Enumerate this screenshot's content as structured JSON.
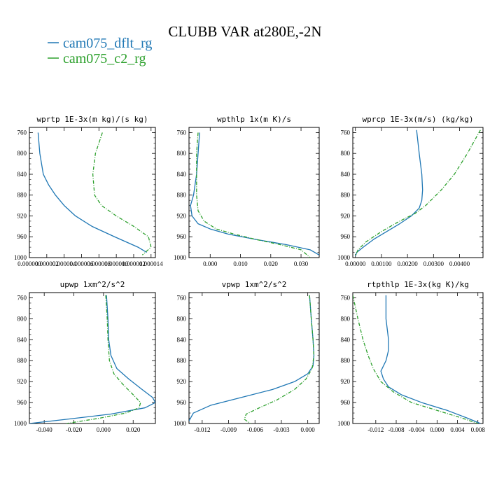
{
  "figure": {
    "title": "CLUBB VAR at280E,-2N",
    "legend": [
      {
        "name": "cam075_dflt_rg",
        "color": "#1f77b4"
      },
      {
        "name": "cam075_c2_rg",
        "color": "#2ca02c"
      }
    ]
  },
  "chart_data": [
    {
      "type": "line",
      "title": "wprtp  1E-3x(m kg)/(s kg)",
      "xlim": [
        0.0,
        1.45e-05
      ],
      "ylim": [
        1000,
        750
      ],
      "xticks": [
        0.0,
        2e-06,
        4e-06,
        6e-06,
        8e-06,
        1e-05,
        1.2e-05,
        1.4e-05
      ],
      "xtick_labels": [
        "0.000000",
        "0.000002",
        "0.000004",
        "0.000006",
        "0.000008",
        "0.000010",
        "0.000012",
        "0.000014"
      ],
      "yticks": [
        760,
        800,
        840,
        880,
        920,
        960,
        1000
      ],
      "series": [
        {
          "name": "cam075_dflt_rg",
          "color": "#1f77b4",
          "dashed": false,
          "x": [
            1e-06,
            1.2e-06,
            1.6e-06,
            2.2e-06,
            3e-06,
            4e-06,
            5.3e-06,
            7.2e-06,
            9.8e-06,
            1.25e-05,
            1.35e-05
          ],
          "y": [
            760,
            800,
            840,
            860,
            880,
            900,
            920,
            940,
            960,
            980,
            990
          ]
        },
        {
          "name": "cam075_c2_rg",
          "color": "#2ca02c",
          "dashed": true,
          "x": [
            8.4e-06,
            7.6e-06,
            7.3e-06,
            7.5e-06,
            8.3e-06,
            1e-05,
            1.2e-05,
            1.37e-05,
            1.4e-05,
            1.3e-05
          ],
          "y": [
            760,
            800,
            840,
            880,
            900,
            920,
            940,
            960,
            980,
            995
          ]
        }
      ]
    },
    {
      "type": "line",
      "title": "wpthlp  1x(m K)/s",
      "xlim": [
        -0.007,
        0.036
      ],
      "ylim": [
        1000,
        750
      ],
      "xticks": [
        0.0,
        0.01,
        0.02,
        0.03
      ],
      "xtick_labels": [
        "0.000",
        "0.010",
        "0.020",
        "0.030"
      ],
      "yticks": [
        760,
        800,
        840,
        880,
        920,
        960,
        1000
      ],
      "series": [
        {
          "name": "cam075_dflt_rg",
          "color": "#1f77b4",
          "dashed": false,
          "x": [
            -0.0035,
            -0.004,
            -0.0045,
            -0.0055,
            -0.0065,
            -0.006,
            -0.004,
            0.0,
            0.006,
            0.015,
            0.025,
            0.033,
            0.036
          ],
          "y": [
            760,
            800,
            840,
            880,
            900,
            920,
            935,
            945,
            955,
            965,
            975,
            985,
            995
          ]
        },
        {
          "name": "cam075_c2_rg",
          "color": "#2ca02c",
          "dashed": true,
          "x": [
            -0.004,
            -0.0045,
            -0.0045,
            -0.0045,
            -0.004,
            -0.002,
            0.002,
            0.008,
            0.015,
            0.023,
            0.03,
            0.033
          ],
          "y": [
            760,
            800,
            840,
            880,
            910,
            930,
            945,
            955,
            965,
            975,
            985,
            1000
          ]
        }
      ]
    },
    {
      "type": "line",
      "title": "wprcp  1E-3x(m/s) (kg/kg)",
      "xlim": [
        -0.0001,
        0.0049
      ],
      "ylim": [
        1000,
        750
      ],
      "xticks": [
        0.0,
        0.001,
        0.002,
        0.003,
        0.004
      ],
      "xtick_labels": [
        "0.00000",
        "0.00100",
        "0.00200",
        "0.00300",
        "0.00400"
      ],
      "yticks": [
        760,
        800,
        840,
        880,
        920,
        960,
        1000
      ],
      "series": [
        {
          "name": "cam075_dflt_rg",
          "color": "#1f77b4",
          "dashed": false,
          "x": [
            0.00235,
            0.00245,
            0.00255,
            0.00258,
            0.00255,
            0.00245,
            0.00215,
            0.0017,
            0.0012,
            0.0007,
            0.0003,
            5e-05,
            0.0
          ],
          "y": [
            755,
            800,
            840,
            870,
            890,
            905,
            920,
            935,
            950,
            965,
            980,
            990,
            997
          ]
        },
        {
          "name": "cam075_c2_rg",
          "color": "#2ca02c",
          "dashed": true,
          "x": [
            0.0048,
            0.0043,
            0.0038,
            0.0033,
            0.0027,
            0.0023,
            0.0017,
            0.001,
            0.0004,
            0.0001,
            0.0
          ],
          "y": [
            755,
            800,
            840,
            870,
            900,
            915,
            930,
            950,
            970,
            985,
            997
          ]
        }
      ]
    },
    {
      "type": "line",
      "title": "upwp  1xm^2/s^2",
      "xlim": [
        -0.05,
        0.035
      ],
      "ylim": [
        1000,
        750
      ],
      "xticks": [
        -0.04,
        -0.02,
        0.0,
        0.02
      ],
      "xtick_labels": [
        "-0.040",
        "-0.020",
        "0.000",
        "0.020"
      ],
      "yticks": [
        760,
        800,
        840,
        880,
        920,
        960,
        1000
      ],
      "series": [
        {
          "name": "cam075_dflt_rg",
          "color": "#1f77b4",
          "dashed": false,
          "x": [
            0.002,
            0.003,
            0.0035,
            0.005,
            0.009,
            0.017,
            0.026,
            0.033,
            0.035,
            0.028,
            0.005,
            -0.025,
            -0.05
          ],
          "y": [
            755,
            800,
            840,
            870,
            895,
            915,
            935,
            950,
            960,
            970,
            982,
            992,
            1000
          ]
        },
        {
          "name": "cam075_c2_rg",
          "color": "#2ca02c",
          "dashed": true,
          "x": [
            0.0015,
            0.0025,
            0.003,
            0.004,
            0.007,
            0.013,
            0.02,
            0.025,
            0.024,
            0.015,
            -0.003,
            -0.025
          ],
          "y": [
            755,
            800,
            840,
            880,
            905,
            925,
            945,
            960,
            970,
            980,
            990,
            1000
          ]
        }
      ]
    },
    {
      "type": "line",
      "title": "vpwp  1xm^2/s^2",
      "xlim": [
        -0.0135,
        0.0013
      ],
      "ylim": [
        1000,
        750
      ],
      "xticks": [
        -0.012,
        -0.009,
        -0.006,
        -0.003,
        0.0
      ],
      "xtick_labels": [
        "-0.012",
        "-0.009",
        "-0.006",
        "-0.003",
        "0.000"
      ],
      "yticks": [
        760,
        800,
        840,
        880,
        920,
        960,
        1000
      ],
      "series": [
        {
          "name": "cam075_dflt_rg",
          "color": "#1f77b4",
          "dashed": false,
          "x": [
            0.0002,
            0.0004,
            0.0006,
            0.0007,
            0.0006,
            0.0,
            -0.0015,
            -0.004,
            -0.0075,
            -0.011,
            -0.013,
            -0.0135
          ],
          "y": [
            755,
            800,
            840,
            870,
            890,
            905,
            920,
            935,
            950,
            965,
            980,
            995
          ]
        },
        {
          "name": "cam075_c2_rg",
          "color": "#2ca02c",
          "dashed": true,
          "x": [
            0.0002,
            0.0004,
            0.0006,
            0.0007,
            0.0005,
            -0.0002,
            -0.0015,
            -0.0035,
            -0.0055,
            -0.007,
            -0.0072,
            -0.0065
          ],
          "y": [
            755,
            800,
            840,
            870,
            895,
            915,
            935,
            955,
            970,
            982,
            992,
            1000
          ]
        }
      ]
    },
    {
      "type": "line",
      "title": "rtpthlp  1E-3x(kg K)/kg",
      "xlim": [
        -0.0165,
        0.009
      ],
      "ylim": [
        1000,
        750
      ],
      "xticks": [
        -0.012,
        -0.008,
        -0.004,
        0.0,
        0.004,
        0.008
      ],
      "xtick_labels": [
        "-0.012",
        "-0.008",
        "-0.004",
        "0.000",
        "0.004",
        "0.008"
      ],
      "yticks": [
        760,
        800,
        840,
        880,
        920,
        960,
        1000
      ],
      "series": [
        {
          "name": "cam075_dflt_rg",
          "color": "#1f77b4",
          "dashed": false,
          "x": [
            -0.01,
            -0.01,
            -0.0095,
            -0.0095,
            -0.01,
            -0.011,
            -0.0105,
            -0.0095,
            -0.007,
            -0.003,
            0.002,
            0.006,
            0.0085
          ],
          "y": [
            755,
            800,
            840,
            860,
            880,
            900,
            915,
            930,
            945,
            960,
            975,
            990,
            1000
          ]
        },
        {
          "name": "cam075_c2_rg",
          "color": "#2ca02c",
          "dashed": true,
          "x": [
            -0.0165,
            -0.0155,
            -0.0145,
            -0.0135,
            -0.0125,
            -0.011,
            -0.0085,
            -0.005,
            0.0,
            0.005,
            0.008
          ],
          "y": [
            755,
            800,
            840,
            870,
            895,
            920,
            940,
            960,
            975,
            990,
            1000
          ]
        }
      ]
    }
  ]
}
